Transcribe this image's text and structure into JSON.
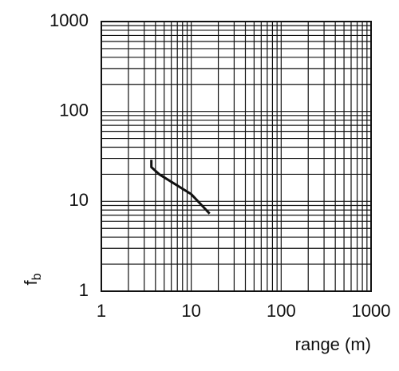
{
  "chart_data": {
    "type": "line",
    "xlabel": "range (m)",
    "ylabel": "f",
    "ylabel_subscript": "b",
    "xscale": "log",
    "yscale": "log",
    "grid": true,
    "xlim": [
      1,
      1000
    ],
    "ylim": [
      1,
      1000
    ],
    "xticks": [
      1,
      10,
      100,
      1000
    ],
    "yticks": [
      1,
      10,
      100,
      1000
    ],
    "series": [
      {
        "color": "#111111",
        "x": [
          3.6,
          3.6,
          4.4,
          10,
          16
        ],
        "values": [
          29,
          24,
          20,
          12,
          7.3
        ]
      }
    ]
  }
}
